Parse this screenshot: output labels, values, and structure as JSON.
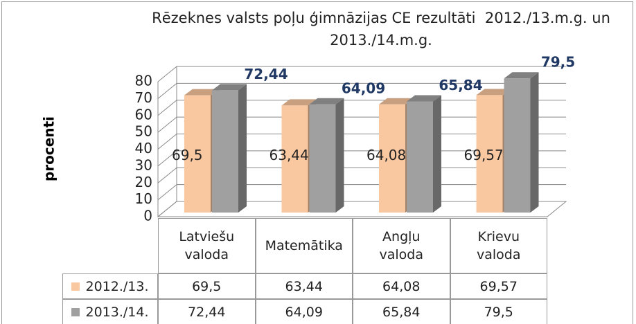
{
  "chart_data": {
    "type": "bar3d",
    "title": "Rēzeknes valsts poļu ģimnāzijas CE rezultāti  2012./13.m.g. un 2013./14.m.g.",
    "y_label": "procenti",
    "categories": [
      "Latviešu valoda",
      "Matemātika",
      "Angļu valoda",
      "Krievu valoda"
    ],
    "series": [
      {
        "name": "2012./13.",
        "color": "#fac8a0",
        "values": [
          69.5,
          63.44,
          64.08,
          69.57
        ],
        "value_labels": [
          "69,5",
          "63,44",
          "64,08",
          "69,57"
        ]
      },
      {
        "name": "2013./14.",
        "color": "#a0a0a0",
        "values": [
          72.44,
          64.09,
          65.84,
          79.5
        ],
        "value_labels": [
          "72,44",
          "64,09",
          "65,84",
          "79,5"
        ]
      }
    ],
    "ylim": [
      0,
      80
    ],
    "yticks": [
      0,
      10,
      20,
      30,
      40,
      50,
      60,
      70,
      80
    ],
    "grid": true
  }
}
